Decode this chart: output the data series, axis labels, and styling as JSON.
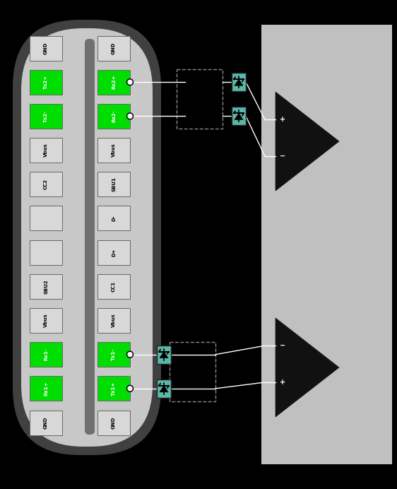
{
  "fig_width": 5.62,
  "fig_height": 6.92,
  "bg_color": "#000000",
  "left_pins": [
    {
      "label": "GND",
      "green": false
    },
    {
      "label": "Tx2+",
      "green": true
    },
    {
      "label": "Tx2-",
      "green": true
    },
    {
      "label": "Vbus",
      "green": false
    },
    {
      "label": "CC2",
      "green": false
    },
    {
      "label": "",
      "green": false
    },
    {
      "label": "",
      "green": false
    },
    {
      "label": "SBU2",
      "green": false
    },
    {
      "label": "Vbus",
      "green": false
    },
    {
      "label": "Rx1-",
      "green": true
    },
    {
      "label": "Rx1+",
      "green": true
    },
    {
      "label": "GND",
      "green": false
    }
  ],
  "right_pins": [
    {
      "label": "GND",
      "green": false
    },
    {
      "label": "Rx2+",
      "green": true
    },
    {
      "label": "Rx2-",
      "green": true
    },
    {
      "label": "Vbus",
      "green": false
    },
    {
      "label": "SBU1",
      "green": false
    },
    {
      "label": "D-",
      "green": false
    },
    {
      "label": "D+",
      "green": false
    },
    {
      "label": "CC1",
      "green": false
    },
    {
      "label": "Vbus",
      "green": false
    },
    {
      "label": "Tx1-",
      "green": true
    },
    {
      "label": "Tx1+",
      "green": true
    },
    {
      "label": "GND",
      "green": false
    }
  ],
  "tvs_color": "#5ab8a8",
  "wire_color": "#ffffff",
  "dashed_color": "#888888",
  "amp_bg": "#c0c0c0"
}
